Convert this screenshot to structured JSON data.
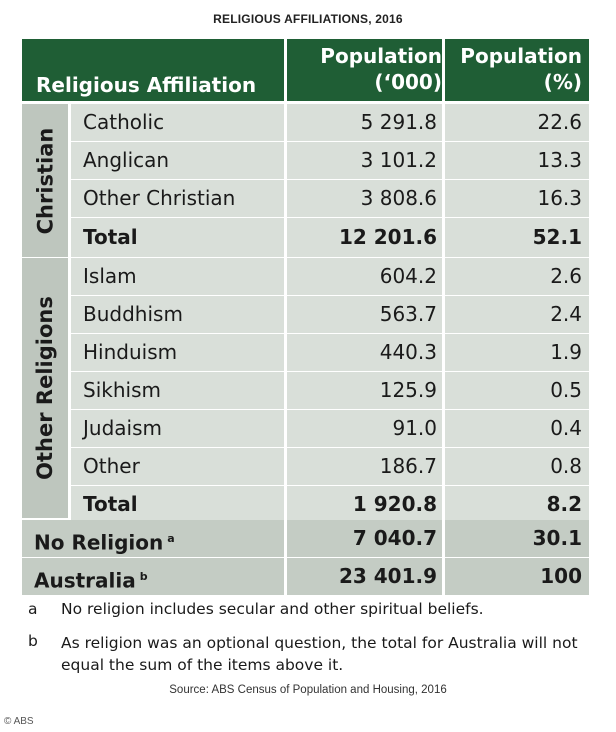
{
  "title": "RELIGIOUS AFFILIATIONS, 2016",
  "header": {
    "affiliation": "Religious Affiliation",
    "pop_thousands_line1": "Population",
    "pop_thousands_line2": "(‘000)",
    "pop_percent_line1": "Population",
    "pop_percent_line2": "(%)"
  },
  "groups": {
    "christian": "Christian",
    "other": "Other Religions"
  },
  "rows": [
    {
      "label": "Catholic",
      "thousands": "5 291.8",
      "percent": "22.6"
    },
    {
      "label": "Anglican",
      "thousands": "3 101.2",
      "percent": "13.3"
    },
    {
      "label": "Other Christian",
      "thousands": "3 808.6",
      "percent": "16.3"
    },
    {
      "label": "Total",
      "thousands": "12 201.6",
      "percent": "52.1"
    },
    {
      "label": "Islam",
      "thousands": "604.2",
      "percent": "2.6"
    },
    {
      "label": "Buddhism",
      "thousands": "563.7",
      "percent": "2.4"
    },
    {
      "label": "Hinduism",
      "thousands": "440.3",
      "percent": "1.9"
    },
    {
      "label": "Sikhism",
      "thousands": "125.9",
      "percent": "0.5"
    },
    {
      "label": "Judaism",
      "thousands": "91.0",
      "percent": "0.4"
    },
    {
      "label": "Other",
      "thousands": "186.7",
      "percent": "0.8"
    },
    {
      "label": "Total",
      "thousands": "1 920.8",
      "percent": "8.2"
    },
    {
      "label": "No Religion",
      "sup": "a",
      "thousands": "7 040.7",
      "percent": "30.1"
    },
    {
      "label": "Australia",
      "sup": "b",
      "thousands": "23 401.9",
      "percent": "100"
    }
  ],
  "notes": [
    {
      "key": "a",
      "text": "No religion includes secular and other spiritual beliefs."
    },
    {
      "key": "b",
      "text": "As religion was an optional question, the total for Australia will not equal the sum of the items above it."
    }
  ],
  "source": "Source: ABS Census of Population and Housing, 2016",
  "credit": "© ABS",
  "colors": {
    "header": "#1f5e35",
    "row": "#d9dfd9",
    "group": "#bec6be"
  },
  "chart_data": {
    "type": "table",
    "title": "RELIGIOUS AFFILIATIONS, 2016",
    "columns": [
      "Religious Affiliation",
      "Population (‘000)",
      "Population (%)"
    ],
    "groups": [
      {
        "name": "Christian",
        "rows": [
          [
            "Catholic",
            5291.8,
            22.6
          ],
          [
            "Anglican",
            3101.2,
            13.3
          ],
          [
            "Other Christian",
            3808.6,
            16.3
          ],
          [
            "Total",
            12201.6,
            52.1
          ]
        ]
      },
      {
        "name": "Other Religions",
        "rows": [
          [
            "Islam",
            604.2,
            2.6
          ],
          [
            "Buddhism",
            563.7,
            2.4
          ],
          [
            "Hinduism",
            440.3,
            1.9
          ],
          [
            "Sikhism",
            125.9,
            0.5
          ],
          [
            "Judaism",
            91.0,
            0.4
          ],
          [
            "Other",
            186.7,
            0.8
          ],
          [
            "Total",
            1920.8,
            8.2
          ]
        ]
      }
    ],
    "rows": [
      [
        "No Religion",
        7040.7,
        30.1
      ],
      [
        "Australia",
        23401.9,
        100
      ]
    ]
  }
}
